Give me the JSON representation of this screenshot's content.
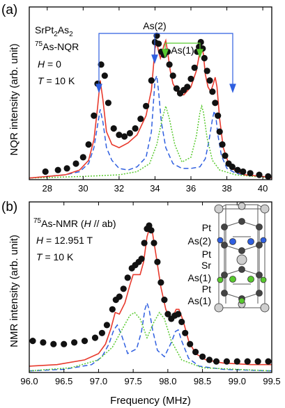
{
  "chart_data": [
    {
      "type": "line",
      "panel_label": "(a)",
      "ylabel": "NQR intensity (arb. unit)",
      "xlim": [
        27,
        40.5
      ],
      "ylim": [
        0,
        1.08
      ],
      "xticks": [
        28,
        30,
        32,
        34,
        36,
        38,
        40
      ],
      "annotations": {
        "sample": [
          "SrPt",
          "2",
          "As",
          "2"
        ],
        "nucleus": [
          "75",
          "As-NQR"
        ],
        "field": [
          "H",
          " = 0"
        ],
        "temp": [
          "T",
          " = 10 K"
        ],
        "site2": "As(2)",
        "site1": "As(1)"
      },
      "series": [
        {
          "style": "points",
          "x": [
            27.9,
            28.6,
            29.1,
            29.6,
            30.0,
            30.3,
            30.6,
            30.8,
            31.0,
            31.2,
            31.4,
            31.7,
            32.0,
            32.3,
            32.6,
            32.9,
            33.2,
            33.5,
            33.8,
            34.0,
            34.1,
            34.2,
            34.35,
            34.5,
            34.6,
            34.7,
            34.8,
            35.0,
            35.2,
            35.4,
            35.6,
            35.8,
            36.0,
            36.2,
            36.35,
            36.45,
            36.55,
            36.65,
            36.75,
            36.9,
            37.05,
            37.2,
            37.35,
            37.5,
            37.6,
            37.75,
            37.9,
            38.1,
            38.3,
            38.6,
            38.9,
            39.3,
            39.8,
            40.3
          ],
          "y": [
            0.05,
            0.06,
            0.07,
            0.1,
            0.14,
            0.22,
            0.4,
            0.6,
            0.72,
            0.65,
            0.48,
            0.32,
            0.28,
            0.27,
            0.29,
            0.32,
            0.38,
            0.46,
            0.62,
            0.86,
            0.9,
            0.85,
            0.8,
            0.78,
            0.8,
            0.8,
            0.72,
            0.65,
            0.57,
            0.54,
            0.56,
            0.58,
            0.63,
            0.7,
            0.8,
            0.83,
            0.86,
            0.82,
            0.76,
            0.68,
            0.62,
            0.55,
            0.48,
            0.4,
            0.3,
            0.22,
            0.15,
            0.1,
            0.08,
            0.06,
            0.05,
            0.04,
            0.03,
            0.02
          ]
        },
        {
          "style": "fit-red",
          "color": "#e8392c",
          "x": [
            27,
            28,
            29,
            29.8,
            30.3,
            30.6,
            30.8,
            30.95,
            31.1,
            31.3,
            31.6,
            32,
            32.5,
            33,
            33.5,
            33.8,
            34.0,
            34.1,
            34.2,
            34.3,
            34.4,
            34.5,
            34.6,
            34.7,
            34.85,
            35.0,
            35.3,
            35.6,
            36.0,
            36.3,
            36.5,
            36.6,
            36.7,
            36.8,
            36.95,
            37.1,
            37.25,
            37.35,
            37.45,
            37.6,
            37.8,
            38.1,
            38.5,
            39,
            40,
            40.5
          ],
          "y": [
            0.01,
            0.02,
            0.03,
            0.06,
            0.12,
            0.25,
            0.45,
            0.62,
            0.5,
            0.3,
            0.22,
            0.2,
            0.23,
            0.28,
            0.4,
            0.56,
            0.82,
            0.86,
            0.8,
            0.76,
            0.8,
            0.84,
            0.87,
            0.8,
            0.68,
            0.6,
            0.54,
            0.53,
            0.58,
            0.68,
            0.8,
            0.84,
            0.78,
            0.66,
            0.58,
            0.55,
            0.6,
            0.64,
            0.58,
            0.38,
            0.2,
            0.1,
            0.05,
            0.03,
            0.02,
            0.01
          ]
        },
        {
          "style": "fit-blue",
          "color": "#2f5fe0",
          "x": [
            27,
            28,
            29,
            29.8,
            30.3,
            30.6,
            30.8,
            30.95,
            31.1,
            31.3,
            31.6,
            32,
            32.5,
            33,
            33.5,
            33.8,
            34.0,
            34.1,
            34.2,
            34.35,
            34.6,
            35,
            35.5,
            36,
            36.5,
            36.8,
            37.0,
            37.2,
            37.3,
            37.4,
            37.5,
            37.7,
            38,
            38.5,
            39,
            40,
            40.5
          ],
          "y": [
            0.01,
            0.02,
            0.03,
            0.05,
            0.1,
            0.2,
            0.34,
            0.44,
            0.36,
            0.2,
            0.12,
            0.07,
            0.06,
            0.08,
            0.14,
            0.3,
            0.62,
            0.65,
            0.55,
            0.36,
            0.2,
            0.1,
            0.07,
            0.07,
            0.08,
            0.13,
            0.24,
            0.38,
            0.43,
            0.38,
            0.28,
            0.15,
            0.07,
            0.04,
            0.03,
            0.02,
            0.01
          ]
        },
        {
          "style": "fit-green",
          "color": "#58c92e",
          "x": [
            27,
            30,
            32,
            33,
            33.7,
            34.1,
            34.4,
            34.6,
            34.8,
            35.1,
            35.5,
            36,
            36.3,
            36.5,
            36.6,
            36.7,
            36.9,
            37.2,
            37.6,
            38.5,
            40.5
          ],
          "y": [
            0.01,
            0.02,
            0.03,
            0.05,
            0.1,
            0.22,
            0.38,
            0.46,
            0.38,
            0.22,
            0.11,
            0.14,
            0.27,
            0.42,
            0.46,
            0.42,
            0.26,
            0.12,
            0.06,
            0.03,
            0.01
          ]
        }
      ]
    },
    {
      "type": "line",
      "panel_label": "(b)",
      "xlabel": "Frequency (MHz)",
      "ylabel": "NMR intensity (arb. unit)",
      "xlim": [
        96.0,
        99.5
      ],
      "ylim": [
        0,
        1.08
      ],
      "xticks": [
        "96.0",
        "96.5",
        "97.0",
        "97.5",
        "98.0",
        "98.5",
        "99.0",
        "99.5"
      ],
      "annotations": {
        "nucleus": [
          "75",
          "As-NMR (",
          "H",
          " // ab)"
        ],
        "field": [
          "H",
          " = 12.951 T"
        ],
        "temp": [
          "T",
          " = 10 K"
        ]
      },
      "structure_labels": [
        "Pt",
        "As(2)",
        "Pt",
        "Sr",
        "As(1)",
        "Pt",
        "As(1)"
      ],
      "series": [
        {
          "style": "points",
          "x": [
            96.05,
            96.2,
            96.35,
            96.5,
            96.65,
            96.8,
            96.95,
            97.05,
            97.12,
            97.2,
            97.25,
            97.3,
            97.36,
            97.42,
            97.48,
            97.53,
            97.58,
            97.62,
            97.66,
            97.7,
            97.73,
            97.76,
            97.8,
            97.85,
            97.9,
            97.95,
            98.0,
            98.05,
            98.1,
            98.15,
            98.2,
            98.25,
            98.32,
            98.4,
            98.5,
            98.6,
            98.7,
            98.85,
            99.0,
            99.15,
            99.3,
            99.45
          ],
          "y": [
            0.2,
            0.19,
            0.18,
            0.18,
            0.19,
            0.2,
            0.22,
            0.25,
            0.3,
            0.4,
            0.46,
            0.48,
            0.53,
            0.6,
            0.66,
            0.68,
            0.7,
            0.72,
            0.82,
            0.91,
            0.93,
            0.9,
            0.82,
            0.7,
            0.57,
            0.46,
            0.37,
            0.34,
            0.36,
            0.37,
            0.32,
            0.25,
            0.18,
            0.13,
            0.1,
            0.08,
            0.07,
            0.07,
            0.07,
            0.07,
            0.07,
            0.07
          ]
        },
        {
          "style": "fit-red",
          "color": "#e8392c",
          "x": [
            96.0,
            96.4,
            96.8,
            97.0,
            97.1,
            97.18,
            97.24,
            97.3,
            97.38,
            97.45,
            97.5,
            97.55,
            97.6,
            97.65,
            97.7,
            97.74,
            97.78,
            97.83,
            97.9,
            97.97,
            98.03,
            98.08,
            98.12,
            98.16,
            98.22,
            98.3,
            98.4,
            98.55,
            98.8,
            99.2,
            99.5
          ],
          "y": [
            0.04,
            0.05,
            0.08,
            0.12,
            0.18,
            0.28,
            0.38,
            0.37,
            0.44,
            0.55,
            0.62,
            0.62,
            0.62,
            0.7,
            0.86,
            0.92,
            0.88,
            0.74,
            0.54,
            0.4,
            0.34,
            0.36,
            0.4,
            0.4,
            0.33,
            0.2,
            0.12,
            0.08,
            0.06,
            0.05,
            0.05
          ]
        },
        {
          "style": "fit-blue",
          "color": "#2f5fe0",
          "x": [
            96.0,
            96.5,
            96.9,
            97.05,
            97.15,
            97.22,
            97.27,
            97.33,
            97.42,
            97.55,
            97.62,
            97.67,
            97.7,
            97.73,
            97.78,
            97.85,
            97.95,
            98.05,
            98.11,
            98.15,
            98.2,
            98.3,
            98.45,
            98.8,
            99.5
          ],
          "y": [
            0.01,
            0.02,
            0.05,
            0.1,
            0.18,
            0.27,
            0.3,
            0.24,
            0.12,
            0.15,
            0.26,
            0.4,
            0.44,
            0.4,
            0.27,
            0.14,
            0.1,
            0.19,
            0.26,
            0.27,
            0.2,
            0.09,
            0.04,
            0.02,
            0.01
          ]
        },
        {
          "style": "fit-green",
          "color": "#58c92e",
          "x": [
            96.0,
            96.6,
            97.0,
            97.2,
            97.35,
            97.45,
            97.52,
            97.6,
            97.7,
            97.8,
            97.88,
            97.95,
            98.05,
            98.2,
            98.5,
            99.0,
            99.5
          ],
          "y": [
            0.01,
            0.03,
            0.08,
            0.16,
            0.28,
            0.36,
            0.38,
            0.34,
            0.22,
            0.32,
            0.38,
            0.34,
            0.2,
            0.08,
            0.03,
            0.02,
            0.01
          ]
        }
      ]
    }
  ]
}
